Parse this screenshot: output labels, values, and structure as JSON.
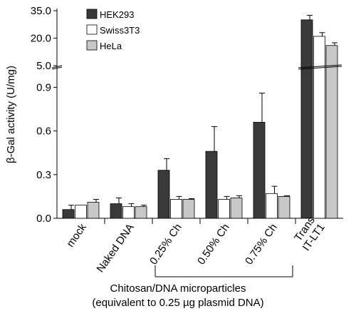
{
  "chart_data": {
    "type": "bar",
    "ylabel": "β-Gal activity (U/mg)",
    "axis_break": {
      "lower_range": [
        0,
        1.0
      ],
      "upper_range": [
        5.0,
        35.0
      ]
    },
    "yticks_lower": [
      "0.0",
      "0.3",
      "0.6",
      "0.9"
    ],
    "yticks_upper": [
      "5.0",
      "20.0",
      "35.0"
    ],
    "categories": [
      "mock",
      "Naked DNA",
      "0.25% Ch",
      "0.50% Ch",
      "0.75% Ch",
      "Trans IT-LT1"
    ],
    "category_lines": [
      [
        "mock"
      ],
      [
        "Naked DNA"
      ],
      [
        "0.25% Ch"
      ],
      [
        "0.50% Ch"
      ],
      [
        "0.75% Ch"
      ],
      [
        "Trans",
        "IT-LT1"
      ]
    ],
    "series": [
      {
        "name": "HEK293",
        "color": "#3a3a3a",
        "values": [
          0.06,
          0.1,
          0.33,
          0.46,
          0.66,
          30.0
        ],
        "errors": [
          0.03,
          0.04,
          0.08,
          0.17,
          0.2,
          2.5
        ]
      },
      {
        "name": "Swiss3T3",
        "color": "#ffffff",
        "values": [
          0.09,
          0.08,
          0.13,
          0.13,
          0.17,
          21.0
        ],
        "errors": [
          0.0,
          0.02,
          0.02,
          0.02,
          0.05,
          2.0
        ]
      },
      {
        "name": "HeLa",
        "color": "#c8c8c8",
        "values": [
          0.11,
          0.08,
          0.13,
          0.14,
          0.15,
          16.0
        ],
        "errors": [
          0.02,
          0.01,
          0.005,
          0.015,
          0.005,
          1.5
        ]
      }
    ],
    "legend_position": "top-left",
    "bracket_group": [
      "0.25% Ch",
      "0.50% Ch",
      "0.75% Ch"
    ],
    "caption_line1": "Chitosan/DNA microparticles",
    "caption_line2": "(equivalent to 0.25 µg plasmid DNA)"
  }
}
